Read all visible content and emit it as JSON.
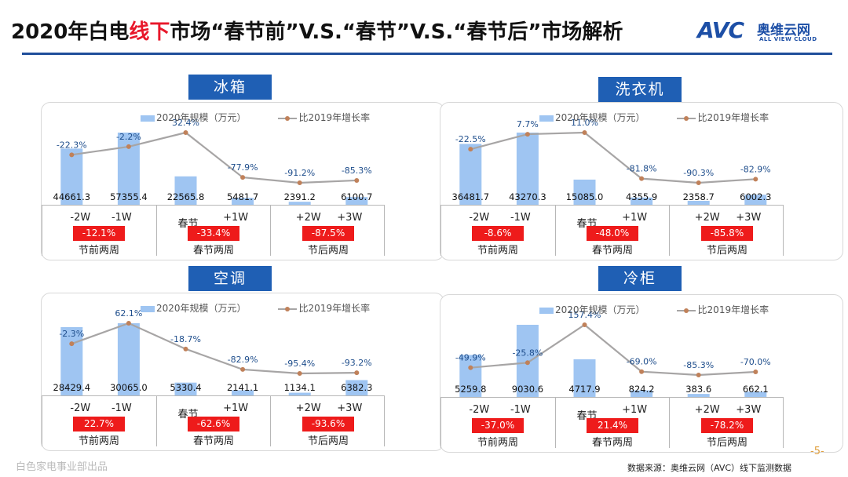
{
  "header": {
    "title_pre": "2020年白电",
    "title_red": "线下",
    "title_post": "市场“春节前”V.S.“春节”V.S.“春节后”市场解析",
    "logo_mark": "AVC",
    "logo_cn": "奥维云网",
    "logo_en": "ALL VIEW CLOUD"
  },
  "legend": {
    "bar_label": "2020年规模（万元）",
    "line_label": "比2019年增长率"
  },
  "colors": {
    "bar": "#9fc5f2",
    "line": "#a7a5a5",
    "marker": "#c0815a",
    "badge": "#ee1b1b",
    "title_bg": "#1f5fb4"
  },
  "chart_data": [
    {
      "type": "bar",
      "title": "冰箱",
      "categories": [
        "-2W",
        "-1W",
        "春节",
        "+1W",
        "+2W",
        "+3W"
      ],
      "series": [
        {
          "name": "2020年规模（万元）",
          "values": [
            44661.3,
            57355.4,
            22565.8,
            5481.7,
            2391.2,
            6100.7
          ],
          "labels": [
            "44661.3",
            "57355.4",
            "22565.8",
            "5481.7",
            "2391.2",
            "6100.7"
          ]
        },
        {
          "name": "比2019年增长率",
          "type": "line",
          "values": [
            -22.3,
            -2.2,
            32.4,
            -77.9,
            -91.2,
            -85.3
          ],
          "labels": [
            "-22.3%",
            "-2.2%",
            "32.4%",
            "-77.9%",
            "-91.2%",
            "-85.3%"
          ]
        }
      ],
      "periods": [
        {
          "name": "节前两周",
          "growth": "-12.1%"
        },
        {
          "name": "春节两周",
          "growth": "-33.4%"
        },
        {
          "name": "节后两周",
          "growth": "-87.5%"
        }
      ]
    },
    {
      "type": "bar",
      "title": "洗衣机",
      "categories": [
        "-2W",
        "-1W",
        "春节",
        "+1W",
        "+2W",
        "+3W"
      ],
      "series": [
        {
          "name": "2020年规模（万元）",
          "values": [
            36481.7,
            43270.3,
            15085.0,
            4355.9,
            2358.7,
            6002.3
          ],
          "labels": [
            "36481.7",
            "43270.3",
            "15085.0",
            "4355.9",
            "2358.7",
            "6002.3"
          ]
        },
        {
          "name": "比2019年增长率",
          "type": "line",
          "values": [
            -22.5,
            7.7,
            11.0,
            -81.8,
            -90.3,
            -82.9
          ],
          "labels": [
            "-22.5%",
            "7.7%",
            "11.0%",
            "-81.8%",
            "-90.3%",
            "-82.9%"
          ]
        }
      ],
      "periods": [
        {
          "name": "节前两周",
          "growth": "-8.6%"
        },
        {
          "name": "春节两周",
          "growth": "-48.0%"
        },
        {
          "name": "节后两周",
          "growth": "-85.8%"
        }
      ]
    },
    {
      "type": "bar",
      "title": "空调",
      "categories": [
        "-2W",
        "-1W",
        "春节",
        "+1W",
        "+2W",
        "+3W"
      ],
      "series": [
        {
          "name": "2020年规模（万元）",
          "values": [
            28429.4,
            30065.0,
            5330.4,
            2141.1,
            1134.1,
            6382.3
          ],
          "labels": [
            "28429.4",
            "30065.0",
            "5330.4",
            "2141.1",
            "1134.1",
            "6382.3"
          ]
        },
        {
          "name": "比2019年增长率",
          "type": "line",
          "values": [
            -2.3,
            62.1,
            -18.7,
            -82.9,
            -95.4,
            -93.2
          ],
          "labels": [
            "-2.3%",
            "62.1%",
            "-18.7%",
            "-82.9%",
            "-95.4%",
            "-93.2%"
          ]
        }
      ],
      "periods": [
        {
          "name": "节前两周",
          "growth": "22.7%"
        },
        {
          "name": "春节两周",
          "growth": "-62.6%"
        },
        {
          "name": "节后两周",
          "growth": "-93.6%"
        }
      ]
    },
    {
      "type": "bar",
      "title": "冷柜",
      "categories": [
        "-2W",
        "-1W",
        "春节",
        "+1W",
        "+2W",
        "+3W"
      ],
      "series": [
        {
          "name": "2020年规模（万元）",
          "values": [
            5259.8,
            9030.6,
            4717.9,
            824.2,
            383.6,
            662.1
          ],
          "labels": [
            "5259.8",
            "9030.6",
            "4717.9",
            "824.2",
            "383.6",
            "662.1"
          ]
        },
        {
          "name": "比2019年增长率",
          "type": "line",
          "values": [
            -49.9,
            -25.8,
            157.4,
            -69.0,
            -85.3,
            -70.0
          ],
          "labels": [
            "-49.9%",
            "-25.8%",
            "157.4%",
            "-69.0%",
            "-85.3%",
            "-70.0%"
          ]
        }
      ],
      "periods": [
        {
          "name": "节前两周",
          "growth": "-37.0%"
        },
        {
          "name": "春节两周",
          "growth": "21.4%"
        },
        {
          "name": "节后两周",
          "growth": "-78.2%"
        }
      ]
    }
  ],
  "footer": {
    "left": "白色家电事业部出品",
    "source": "数据来源：奥维云网（AVC）线下监测数据",
    "page": "-5-"
  }
}
